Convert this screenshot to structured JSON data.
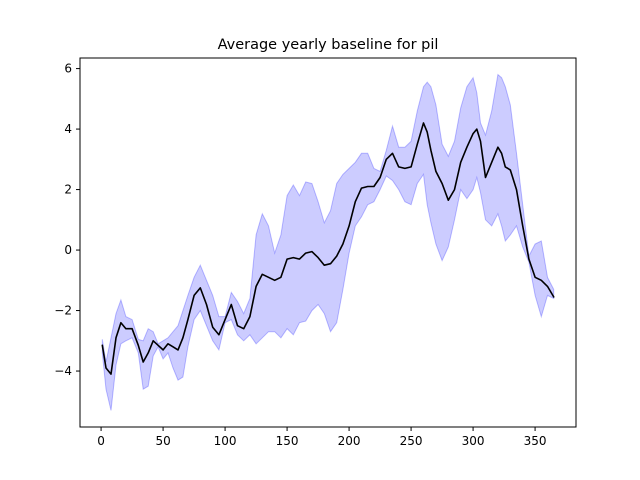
{
  "chart_data": {
    "type": "line",
    "title": "Average yearly baseline for pil",
    "xlabel": "",
    "ylabel": "",
    "xlim": [
      -17,
      383
    ],
    "ylim": [
      -5.85,
      6.35
    ],
    "xticks": [
      0,
      50,
      100,
      150,
      200,
      250,
      300,
      350
    ],
    "yticks": [
      -4,
      -2,
      0,
      2,
      4,
      6
    ],
    "grid": false,
    "colors": {
      "line": "#000000",
      "band_fill": "#0000ff",
      "band_edge": "#0000ff"
    },
    "series": [
      {
        "kind": "mean-line",
        "x": [
          1,
          4,
          8,
          12,
          16,
          20,
          25,
          30,
          34,
          38,
          42,
          46,
          50,
          54,
          58,
          62,
          66,
          70,
          75,
          80,
          85,
          90,
          95,
          100,
          105,
          110,
          115,
          120,
          125,
          130,
          135,
          140,
          145,
          150,
          155,
          160,
          165,
          170,
          175,
          180,
          185,
          190,
          195,
          200,
          205,
          210,
          215,
          220,
          225,
          230,
          235,
          240,
          245,
          250,
          255,
          260,
          263,
          266,
          270,
          275,
          280,
          285,
          290,
          295,
          300,
          303,
          306,
          310,
          315,
          320,
          323,
          326,
          330,
          335,
          340,
          345,
          350,
          355,
          360,
          365
        ],
        "y": [
          -3.15,
          -3.9,
          -4.1,
          -2.9,
          -2.4,
          -2.6,
          -2.6,
          -3.15,
          -3.7,
          -3.4,
          -3.0,
          -3.15,
          -3.3,
          -3.1,
          -3.2,
          -3.3,
          -2.9,
          -2.3,
          -1.5,
          -1.25,
          -1.8,
          -2.55,
          -2.8,
          -2.3,
          -1.8,
          -2.5,
          -2.6,
          -2.2,
          -1.2,
          -0.8,
          -0.9,
          -1.0,
          -0.9,
          -0.3,
          -0.25,
          -0.3,
          -0.1,
          -0.05,
          -0.25,
          -0.5,
          -0.45,
          -0.2,
          0.2,
          0.8,
          1.6,
          2.05,
          2.1,
          2.1,
          2.4,
          3.0,
          3.2,
          2.75,
          2.7,
          2.75,
          3.5,
          4.2,
          3.9,
          3.3,
          2.6,
          2.2,
          1.65,
          2.0,
          2.9,
          3.4,
          3.85,
          4.0,
          3.6,
          2.4,
          2.9,
          3.4,
          3.2,
          2.75,
          2.65,
          2.0,
          0.8,
          -0.3,
          -0.9,
          -1.0,
          -1.2,
          -1.55
        ]
      },
      {
        "kind": "band",
        "x": [
          1,
          4,
          8,
          12,
          16,
          20,
          25,
          30,
          34,
          38,
          42,
          46,
          50,
          54,
          58,
          62,
          66,
          70,
          75,
          80,
          85,
          90,
          95,
          100,
          105,
          110,
          115,
          120,
          125,
          130,
          135,
          140,
          145,
          150,
          155,
          160,
          165,
          170,
          175,
          180,
          185,
          190,
          195,
          200,
          205,
          210,
          215,
          220,
          225,
          230,
          235,
          240,
          245,
          250,
          255,
          260,
          263,
          266,
          270,
          275,
          280,
          285,
          290,
          295,
          300,
          303,
          306,
          310,
          315,
          320,
          323,
          326,
          330,
          335,
          340,
          345,
          350,
          355,
          360,
          365
        ],
        "upper": [
          -2.95,
          -3.7,
          -2.9,
          -2.1,
          -1.65,
          -2.2,
          -2.3,
          -2.95,
          -3.0,
          -2.6,
          -2.7,
          -3.1,
          -3.0,
          -2.9,
          -2.7,
          -2.5,
          -2.0,
          -1.5,
          -0.9,
          -0.5,
          -1.0,
          -1.5,
          -2.2,
          -2.2,
          -1.4,
          -1.7,
          -2.1,
          -1.6,
          0.5,
          1.2,
          0.8,
          -0.1,
          0.5,
          1.8,
          2.15,
          1.8,
          2.25,
          2.2,
          1.6,
          0.9,
          1.3,
          2.2,
          2.5,
          2.7,
          2.9,
          3.2,
          3.2,
          2.7,
          2.6,
          3.3,
          4.1,
          3.4,
          3.4,
          3.6,
          4.6,
          5.4,
          5.55,
          5.4,
          4.8,
          3.5,
          3.1,
          3.6,
          4.7,
          5.4,
          5.7,
          5.2,
          4.2,
          3.8,
          4.6,
          5.8,
          5.7,
          5.4,
          4.8,
          3.2,
          1.5,
          -0.2,
          0.2,
          0.3,
          -0.9,
          -1.3
        ]
      },
      {
        "kind": "band",
        "x": [
          1,
          4,
          8,
          12,
          16,
          20,
          25,
          30,
          34,
          38,
          42,
          46,
          50,
          54,
          58,
          62,
          66,
          70,
          75,
          80,
          85,
          90,
          95,
          100,
          105,
          110,
          115,
          120,
          125,
          130,
          135,
          140,
          145,
          150,
          155,
          160,
          165,
          170,
          175,
          180,
          185,
          190,
          195,
          200,
          205,
          210,
          215,
          220,
          225,
          230,
          235,
          240,
          245,
          250,
          255,
          260,
          263,
          266,
          270,
          275,
          280,
          285,
          290,
          295,
          300,
          303,
          306,
          310,
          315,
          320,
          323,
          326,
          330,
          335,
          340,
          345,
          350,
          355,
          360,
          365
        ],
        "lower": [
          -3.4,
          -4.6,
          -5.3,
          -3.8,
          -3.1,
          -3.0,
          -2.9,
          -3.4,
          -4.6,
          -4.5,
          -3.5,
          -3.2,
          -3.6,
          -3.4,
          -3.9,
          -4.3,
          -4.2,
          -3.2,
          -2.3,
          -2.0,
          -2.5,
          -3.0,
          -3.3,
          -2.4,
          -2.3,
          -2.8,
          -3.0,
          -2.8,
          -3.1,
          -2.9,
          -2.7,
          -2.7,
          -2.9,
          -2.6,
          -2.8,
          -2.4,
          -2.35,
          -2.0,
          -1.8,
          -2.1,
          -2.7,
          -2.4,
          -1.3,
          -0.1,
          0.8,
          1.1,
          1.5,
          1.6,
          2.0,
          2.45,
          2.3,
          2.0,
          1.6,
          1.5,
          2.2,
          2.5,
          1.5,
          0.9,
          0.2,
          -0.35,
          0.1,
          1.0,
          2.0,
          1.7,
          2.0,
          2.4,
          1.9,
          1.0,
          0.8,
          1.2,
          0.8,
          0.3,
          0.5,
          0.8,
          0.1,
          -0.4,
          -1.5,
          -2.2,
          -1.5,
          -1.6
        ]
      }
    ]
  }
}
